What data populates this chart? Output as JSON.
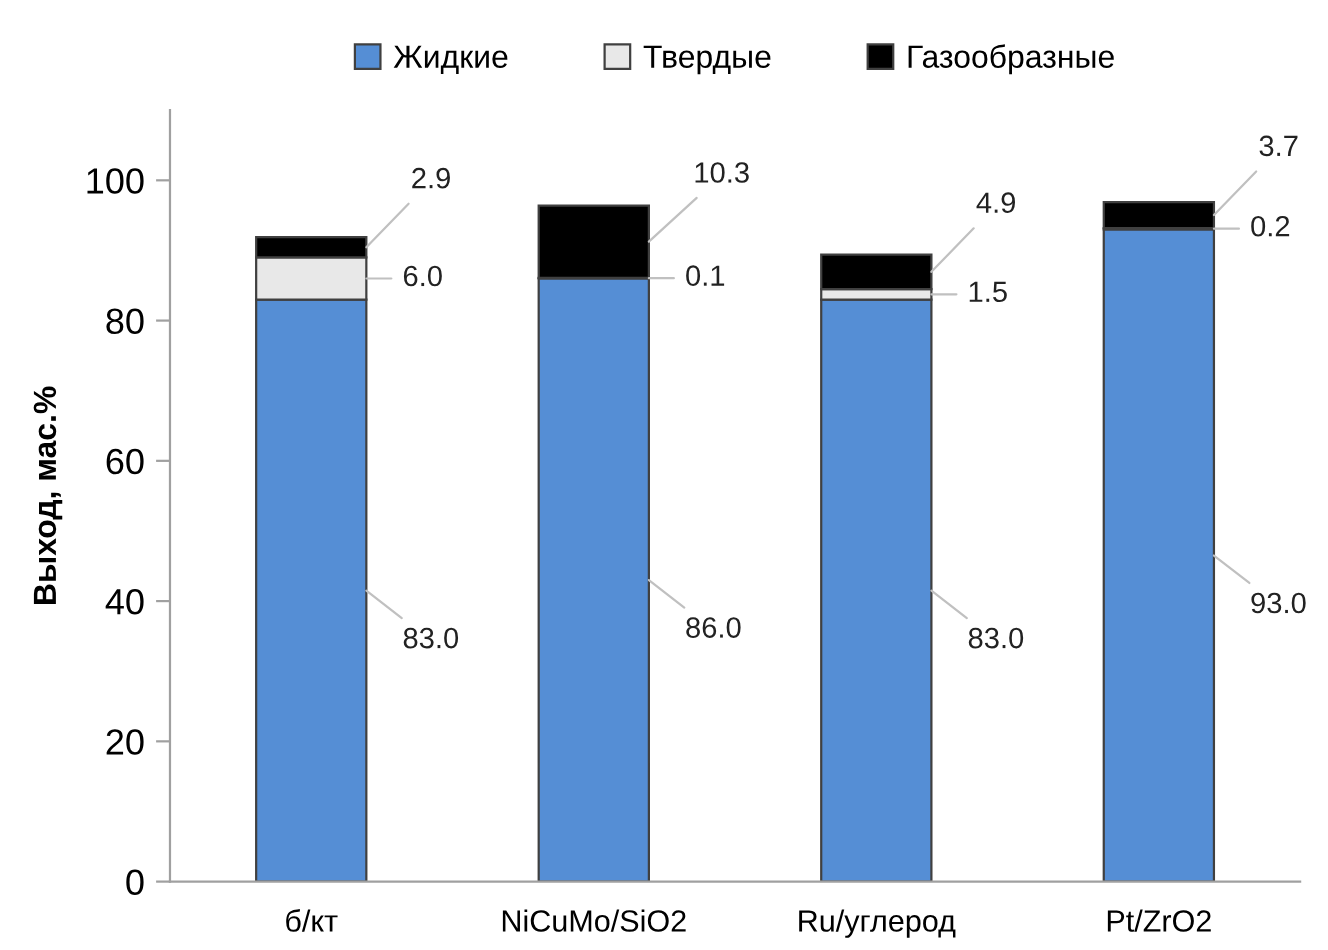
{
  "chart_data": {
    "type": "bar",
    "stacked": true,
    "categories": [
      "б/кт",
      "NiCuMo/SiO2",
      "Ru/углерод",
      "Pt/ZrO2"
    ],
    "ylabel": "Выход, мас.%",
    "ylim": [
      0,
      110
    ],
    "yticks": [
      0,
      20,
      40,
      60,
      80,
      100
    ],
    "grid": false,
    "legend": "top",
    "series": [
      {
        "name": "Жидкие",
        "color": "#558ed5",
        "values": [
          83.0,
          86.0,
          83.0,
          93.0
        ],
        "value_labels": [
          "83.0",
          "86.0",
          "83.0",
          "93.0"
        ]
      },
      {
        "name": "Твердые",
        "color": "#e8e8e8",
        "values": [
          6.0,
          0.1,
          1.5,
          0.2
        ],
        "value_labels": [
          "6.0",
          "0.1",
          "1.5",
          "0.2"
        ]
      },
      {
        "name": "Газообразные",
        "color": "#000000",
        "values": [
          2.9,
          10.3,
          4.9,
          3.7
        ],
        "value_labels": [
          "2.9",
          "10.3",
          "4.9",
          "3.7"
        ]
      }
    ]
  }
}
